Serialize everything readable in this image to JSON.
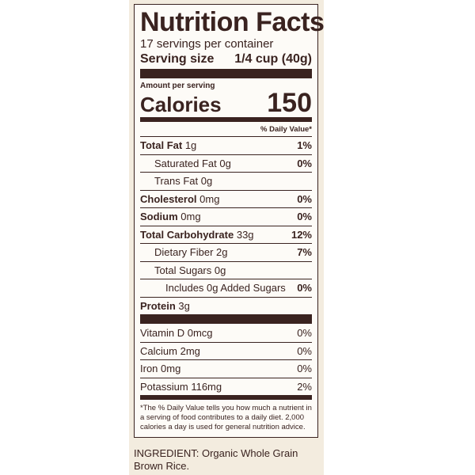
{
  "label": {
    "title": "Nutrition Facts",
    "servings": "17 servings per container",
    "serving_size_label": "Serving size",
    "serving_size_value": "1/4 cup (40g)",
    "amount_per_serving": "Amount per serving",
    "calories_label": "Calories",
    "calories_value": "150",
    "daily_value_header": "% Daily Value*",
    "nutrients": [
      {
        "name": "Total Fat",
        "amount": "1g",
        "dv": "1%"
      },
      {
        "name": "Saturated Fat",
        "amount": "0g",
        "dv": "0%"
      },
      {
        "name": "Trans Fat",
        "amount": "0g",
        "dv": ""
      },
      {
        "name": "Cholesterol",
        "amount": "0mg",
        "dv": "0%"
      },
      {
        "name": "Sodium",
        "amount": "0mg",
        "dv": "0%"
      },
      {
        "name": "Total Carbohydrate",
        "amount": "33g",
        "dv": "12%"
      },
      {
        "name": "Dietary Fiber",
        "amount": "2g",
        "dv": "7%"
      },
      {
        "name": "Total Sugars",
        "amount": "0g",
        "dv": ""
      },
      {
        "name": "Includes 0g Added Sugars",
        "amount": "",
        "dv": "0%"
      },
      {
        "name": "Protein",
        "amount": "3g",
        "dv": ""
      }
    ],
    "vitamins": [
      {
        "name": "Vitamin D",
        "amount": "0mcg",
        "dv": "0%"
      },
      {
        "name": "Calcium",
        "amount": "2mg",
        "dv": "0%"
      },
      {
        "name": "Iron",
        "amount": "0mg",
        "dv": "0%"
      },
      {
        "name": "Potassium",
        "amount": "116mg",
        "dv": "2%"
      }
    ],
    "footnote": "*The % Daily Value tells you how much a nutrient in a serving of food contributes to a daily diet. 2,000 calories a day is used for general nutrition advice."
  },
  "ingredients": "INGREDIENT: Organic Whole Grain Brown Rice."
}
